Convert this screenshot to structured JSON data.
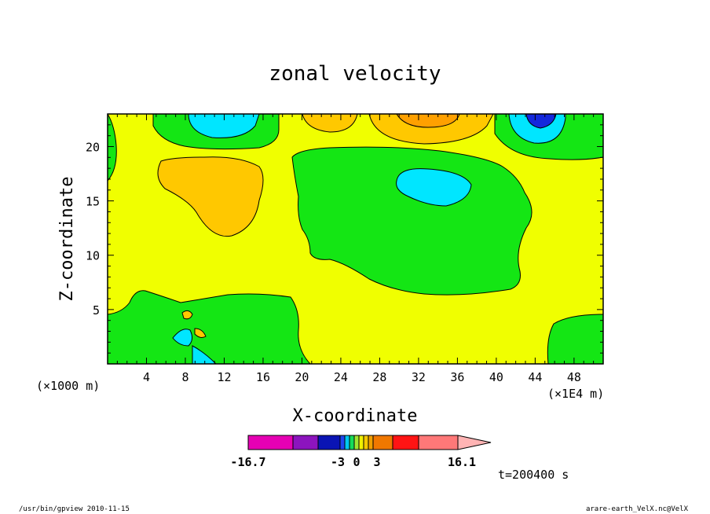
{
  "chart_data": {
    "type": "heatmap",
    "title": "zonal velocity",
    "xlabel": "X-coordinate",
    "ylabel": "Z-coordinate",
    "x_unit": "(×1E4 m)",
    "y_unit": "(×1000 m)",
    "x_ticks": [
      4,
      8,
      12,
      16,
      20,
      24,
      28,
      32,
      36,
      40,
      44,
      48
    ],
    "y_ticks": [
      5,
      10,
      15,
      20
    ],
    "xlim": [
      0,
      51
    ],
    "ylim": [
      0,
      23
    ],
    "time_label": "t=200400 s",
    "colorbar": {
      "min_label": "-16.7",
      "max_label": "16.1",
      "tick_labels": [
        "-3",
        "0",
        "3"
      ],
      "colors": [
        "#e600b4",
        "#8c14be",
        "#0a14b4",
        "#1e46f0",
        "#00c8f0",
        "#14dc5a",
        "#a0e632",
        "#f0f000",
        "#f5c800",
        "#f0a000",
        "#f07800",
        "#ff1414",
        "#ff7878",
        "#ffb4b4"
      ],
      "widths": [
        57,
        32,
        28,
        6,
        6,
        6,
        6,
        6,
        6,
        6,
        25,
        33,
        50,
        0
      ]
    },
    "region_colors": {
      "strong_neg": "#1428dc",
      "neg": "#00e6ff",
      "weak_neg": "#14e614",
      "near_zero": "#f0ff00",
      "weak_pos": "#ffc800",
      "pos": "#ffa000"
    }
  },
  "footer": {
    "left": "/usr/bin/gpview  2010-11-15",
    "right": "arare-earth_VelX.nc@VelX"
  }
}
